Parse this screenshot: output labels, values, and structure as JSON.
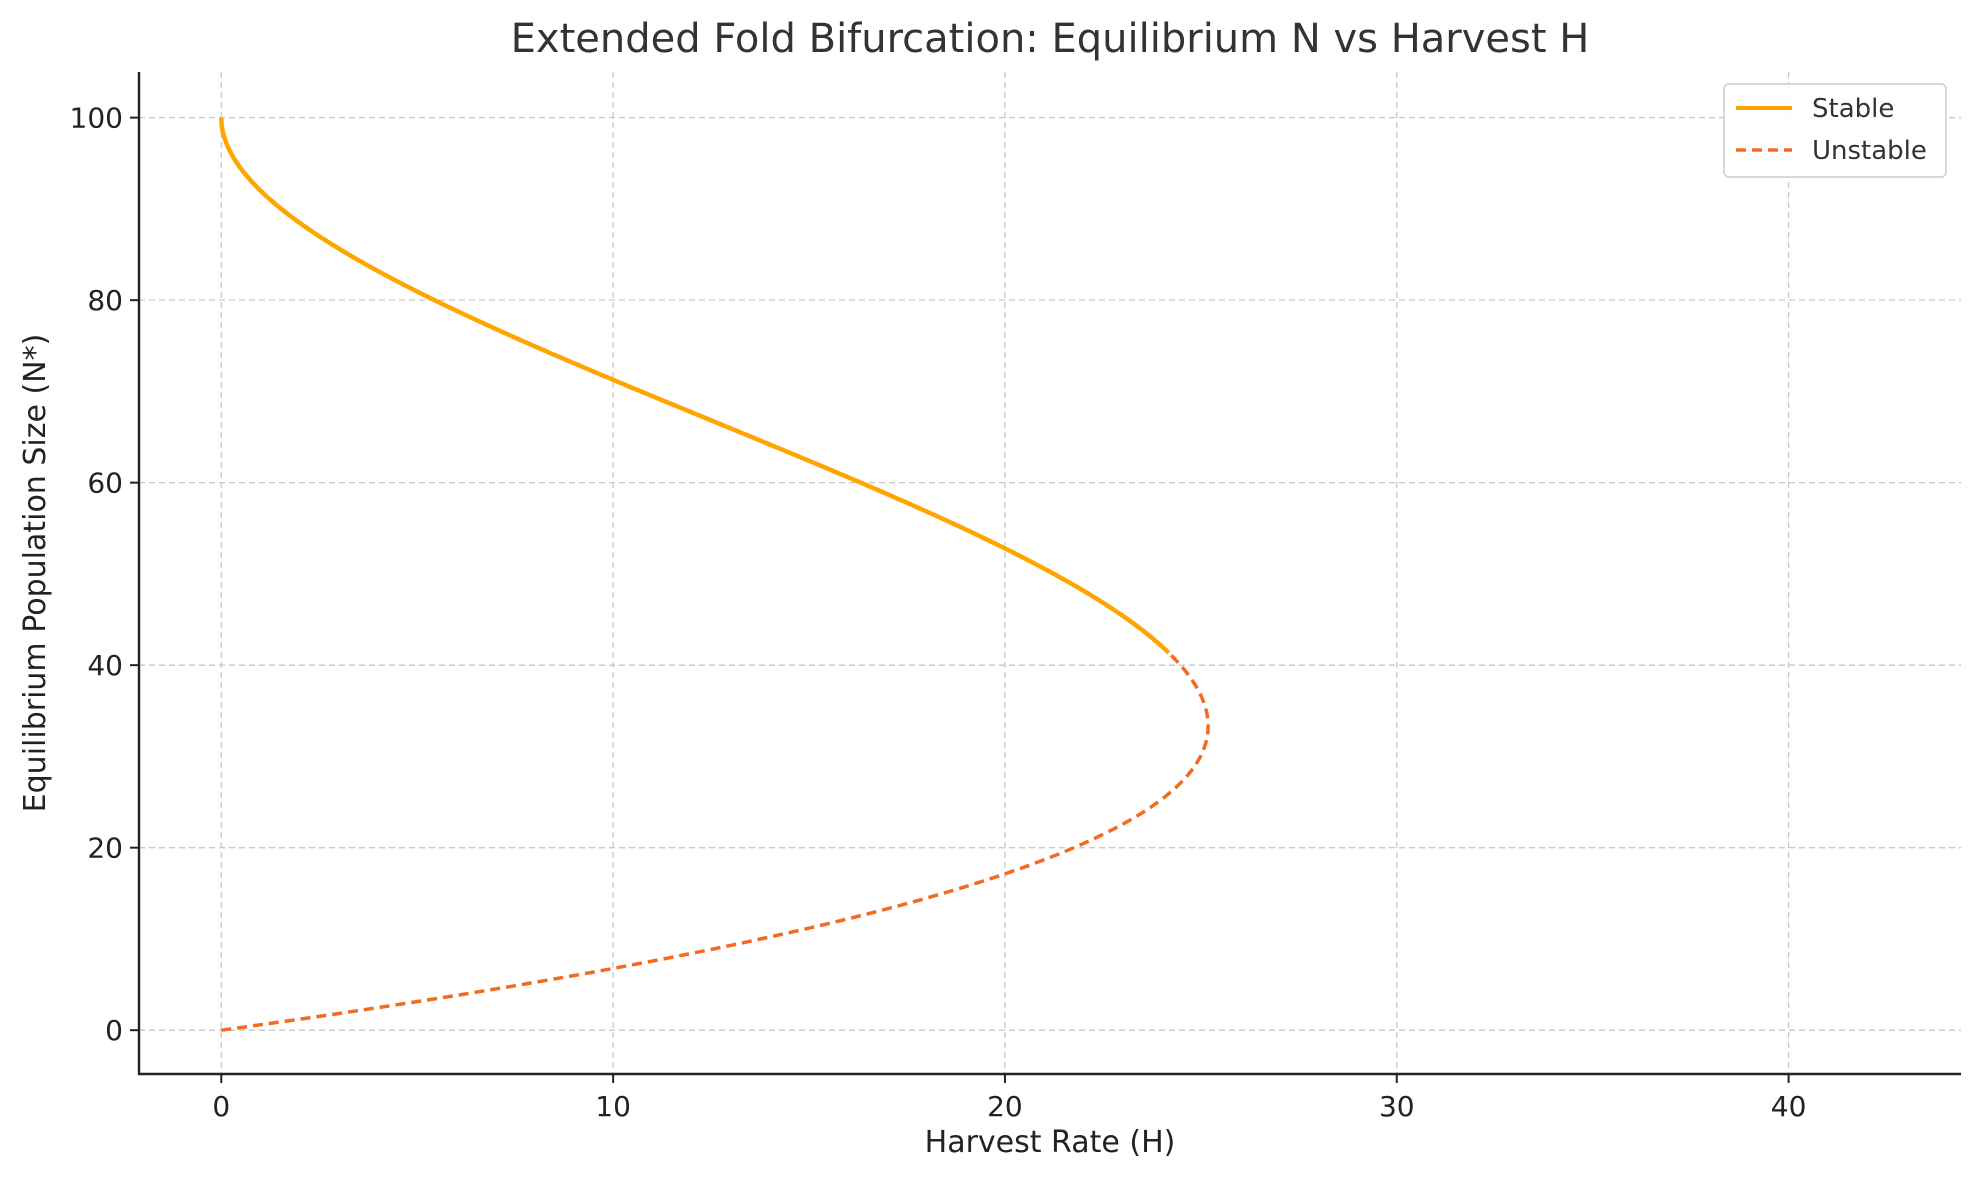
{
  "chart_data": {
    "type": "line",
    "title": "Extended Fold Bifurcation: Equilibrium N vs Harvest H",
    "xlabel": "Harvest Rate (H)",
    "ylabel": "Equilibrium Population Size (N*)",
    "xlim": [
      -2.1,
      44.4
    ],
    "ylim": [
      -4.8,
      105
    ],
    "xticks": [
      0,
      10,
      20,
      30,
      40
    ],
    "yticks": [
      0,
      20,
      40,
      60,
      80,
      100
    ],
    "grid": true,
    "legend_position": "top-right",
    "model": {
      "r": 1.7,
      "K": 100,
      "q": 0.01
    },
    "series": [
      {
        "name": "Stable",
        "style": "solid",
        "color": "#FFA500",
        "n_range": [
          41.35,
          100
        ]
      },
      {
        "name": "Unstable",
        "style": "dashed",
        "color": "#F26B21",
        "n_range": [
          0,
          41.35
        ]
      }
    ]
  }
}
